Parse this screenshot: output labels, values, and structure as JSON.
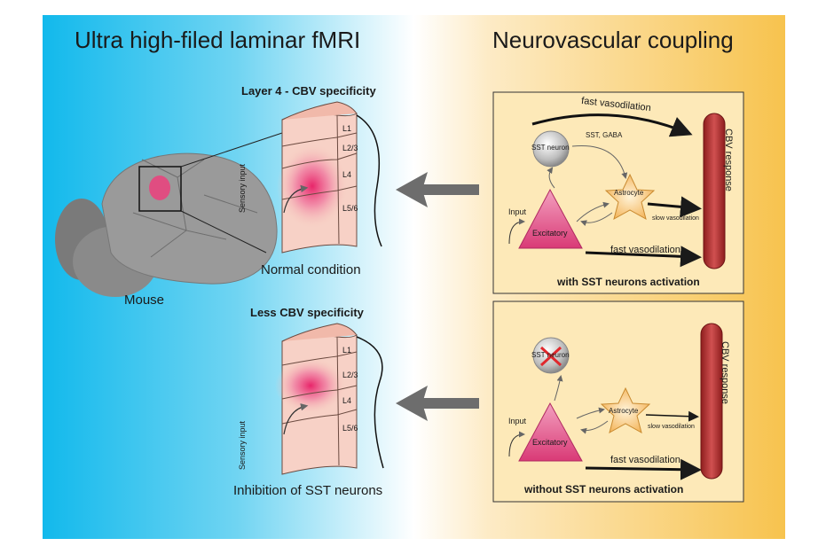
{
  "left_title": "Ultra high-filed laminar fMRI",
  "right_title": "Neurovascular coupling",
  "mouse_label": "Mouse",
  "top_panel": {
    "title": "Layer 4 - CBV specificity",
    "caption": "Normal condition",
    "layers": [
      "L1",
      "L2/3",
      "L4",
      "L5/6"
    ],
    "input_label": "Sensory input"
  },
  "bottom_panel": {
    "title": "Less CBV specificity",
    "caption": "Inhibition of SST neurons",
    "layers": [
      "L1",
      "L2/3",
      "L4",
      "L5/6"
    ],
    "input_label": "Sensory input"
  },
  "box_top": {
    "fast_vaso_top": "fast vasodilation",
    "sst_gaba": "SST, GABA",
    "sst_neuron": "SST neuron",
    "astrocyte": "Astrocyte",
    "slow_vaso": "slow vasodilation",
    "input": "Input",
    "excitatory": "Excitatory",
    "fast_vaso_bottom": "fast vasodilation",
    "cbv": "CBV response",
    "caption": "with SST neurons activation"
  },
  "box_bottom": {
    "sst_neuron": "SST neuron",
    "astrocyte": "Astrocyte",
    "slow_vaso": "slow vasodilation",
    "input": "Input",
    "excitatory": "Excitatory",
    "fast_vaso": "fast vasodilation",
    "cbv": "CBV response",
    "caption": "without SST neurons activation"
  }
}
